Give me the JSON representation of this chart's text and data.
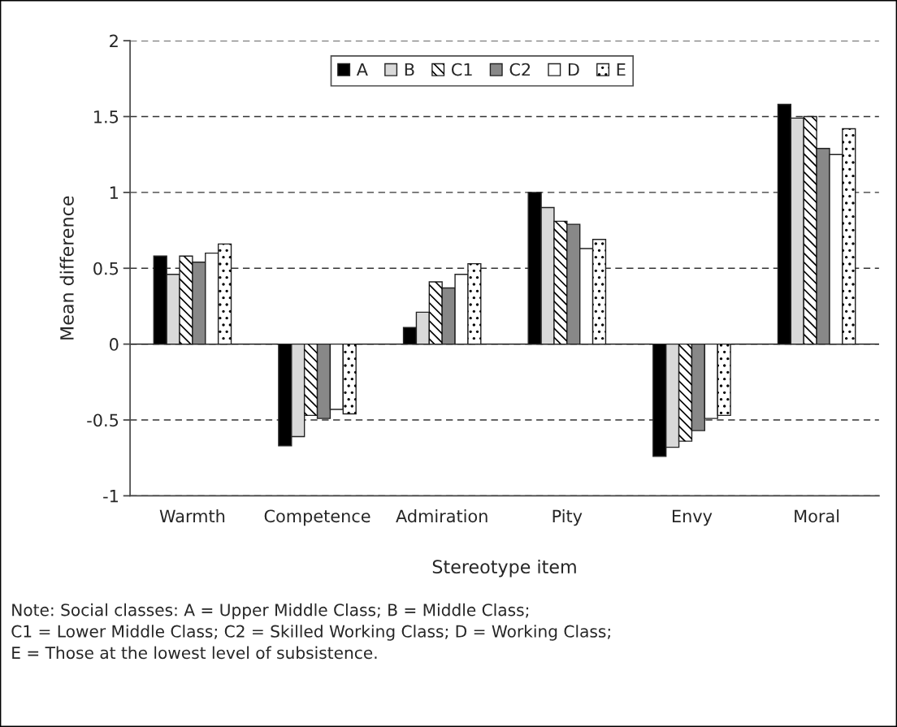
{
  "chart_data": {
    "type": "bar",
    "xlabel": "Stereotype item",
    "ylabel": "Mean difference",
    "categories": [
      "Warmth",
      "Competence",
      "Admiration",
      "Pity",
      "Envy",
      "Moral"
    ],
    "series": [
      {
        "name": "A",
        "color": "#000000",
        "values": [
          0.58,
          -0.67,
          0.11,
          1.0,
          -0.74,
          1.58
        ]
      },
      {
        "name": "B",
        "color": "#d9d9d9",
        "values": [
          0.46,
          -0.61,
          0.21,
          0.9,
          -0.68,
          1.49
        ]
      },
      {
        "name": "C1",
        "color": "#ffffff",
        "values": [
          0.58,
          -0.47,
          0.41,
          0.81,
          -0.64,
          1.5
        ]
      },
      {
        "name": "C2",
        "color": "#888888",
        "values": [
          0.54,
          -0.49,
          0.37,
          0.79,
          -0.57,
          1.29
        ]
      },
      {
        "name": "D",
        "color": "#ffffff",
        "values": [
          0.6,
          -0.43,
          0.46,
          0.63,
          -0.49,
          1.25
        ]
      },
      {
        "name": "E",
        "color": "#ffffff",
        "values": [
          0.66,
          -0.46,
          0.53,
          0.69,
          -0.47,
          1.42
        ]
      }
    ],
    "ylim": [
      -1,
      2
    ],
    "yticks": [
      -1,
      -0.5,
      0,
      0.5,
      1,
      1.5,
      2
    ],
    "grid": "y",
    "legend": "top",
    "ref_lines": [
      {
        "axis": "y",
        "value": 0,
        "color": "#000000",
        "line_style": "solid"
      }
    ],
    "annotations": [
      "Note: Social classes: A = Upper Middle Class; B = Middle Class;\nC1 = Lower Middle Class; C2 = Skilled Working Class; D = Working Class;\nE = Those at the lowest level of subsistence."
    ]
  }
}
